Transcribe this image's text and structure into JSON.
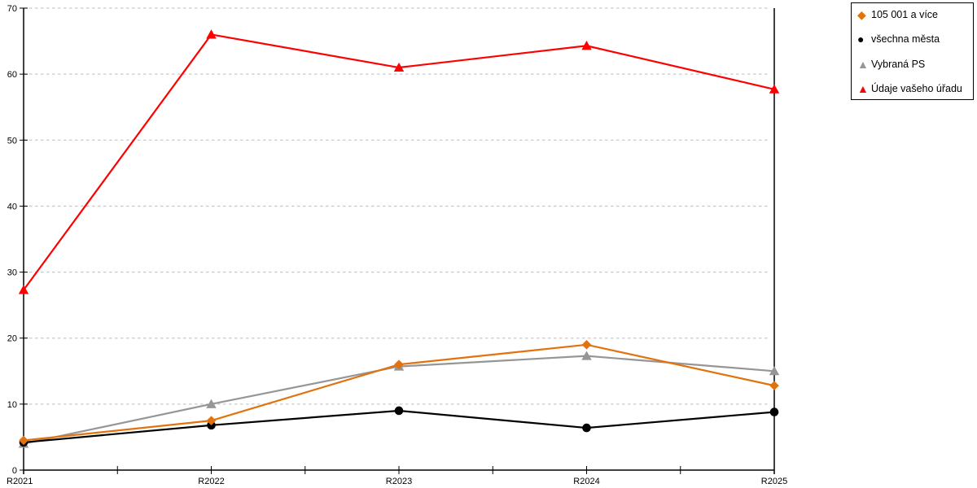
{
  "chart_data": {
    "type": "line",
    "categories": [
      "R2021",
      "R2022",
      "R2023",
      "R2024",
      "R2025"
    ],
    "series": [
      {
        "name": "Vybraná PS",
        "marker": "triangle",
        "color": "#969696",
        "values": [
          4.0,
          10.0,
          15.7,
          17.3,
          15.0
        ]
      },
      {
        "name": "všechna města",
        "marker": "circle",
        "color": "#000000",
        "values": [
          4.2,
          6.8,
          9.0,
          6.4,
          8.8
        ]
      },
      {
        "name": "105 001 a více",
        "marker": "diamond",
        "color": "#E1720E",
        "values": [
          4.5,
          7.5,
          16.0,
          19.0,
          12.8
        ]
      },
      {
        "name": "Údaje vašeho úřadu",
        "marker": "triangle",
        "color": "#FF0000",
        "values": [
          27.3,
          66.0,
          61.0,
          64.3,
          57.7
        ]
      }
    ],
    "legend_order": [
      2,
      1,
      0,
      3
    ],
    "title": "",
    "xlabel": "",
    "ylabel": "",
    "ylim": [
      0,
      70
    ],
    "y_ticks": [
      0,
      10,
      20,
      30,
      40,
      50,
      60,
      70
    ],
    "grid": "horizontal-dashed",
    "grid_color": "#C9C9C9",
    "axis_color": "#000000",
    "legend_position": "top-right"
  },
  "legend": {
    "items": [
      {
        "label": "105 001 a více"
      },
      {
        "label": "všechna města"
      },
      {
        "label": "Vybraná PS"
      },
      {
        "label": "Údaje vašeho úřadu"
      }
    ]
  }
}
